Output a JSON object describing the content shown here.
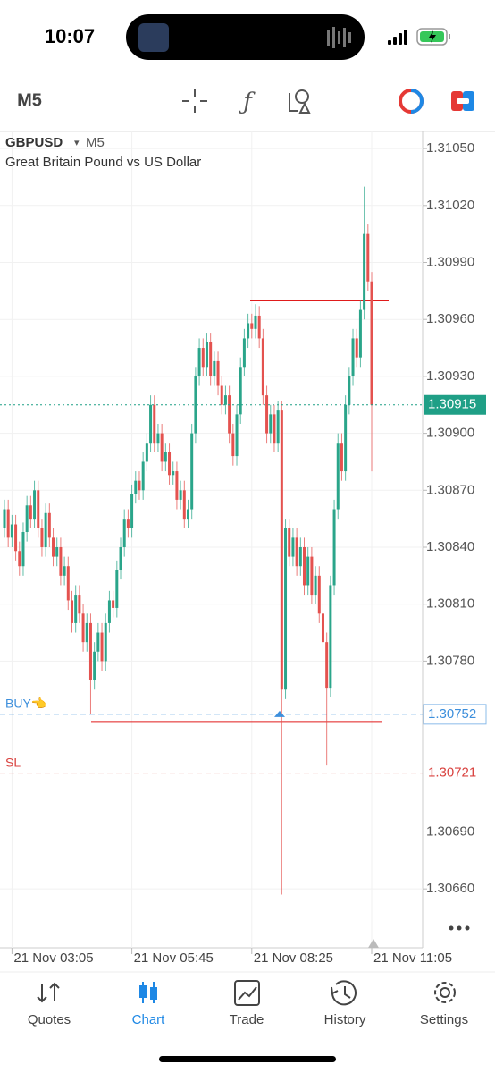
{
  "status_bar": {
    "time": "10:07"
  },
  "toolbar": {
    "timeframe": "M5"
  },
  "chart_data": {
    "type": "candlestick",
    "symbol": "GBPUSD",
    "timeframe": "M5",
    "description": "Great Britain Pound vs US Dollar",
    "up_color": "#2aa58a",
    "down_color": "#e4524f",
    "categories": [
      null,
      null,
      "21 Nov 03:05",
      null,
      null,
      null,
      null,
      null,
      null,
      null,
      null,
      null,
      null,
      null,
      null,
      null,
      null,
      null,
      null,
      null,
      null,
      null,
      null,
      null,
      null,
      null,
      null,
      null,
      null,
      null,
      null,
      null,
      null,
      null,
      "21 Nov 05:45",
      null,
      null,
      null,
      null,
      null,
      null,
      null,
      null,
      null,
      null,
      null,
      null,
      null,
      null,
      null,
      null,
      null,
      null,
      null,
      null,
      null,
      null,
      null,
      null,
      null,
      null,
      null,
      null,
      null,
      null,
      null,
      "21 Nov 08:25",
      null,
      null,
      null,
      null,
      null,
      null,
      null,
      null,
      null,
      null,
      null,
      null,
      null,
      null,
      null,
      null,
      null,
      null,
      null,
      null,
      null,
      null,
      null,
      null,
      null,
      null,
      null,
      null,
      null,
      null,
      null,
      "21 Nov 11:05"
    ],
    "open": [
      1.3085,
      1.3086,
      1.30845,
      1.30852,
      1.30838,
      1.3083,
      1.30848,
      1.30862,
      1.30855,
      1.3087,
      1.3085,
      1.3084,
      1.30858,
      1.30845,
      1.30835,
      1.3084,
      1.30825,
      1.3083,
      1.30812,
      1.308,
      1.30815,
      1.30805,
      1.3079,
      1.308,
      1.3077,
      1.30785,
      1.30795,
      1.3078,
      1.308,
      1.30812,
      1.30808,
      1.30828,
      1.3084,
      1.30855,
      1.3085,
      1.30868,
      1.30875,
      1.3087,
      1.30885,
      1.30895,
      1.30915,
      1.30895,
      1.309,
      1.30885,
      1.3089,
      1.30878,
      1.3088,
      1.30865,
      1.3087,
      1.30855,
      1.3086,
      1.309,
      1.3093,
      1.30945,
      1.30935,
      1.30948,
      1.3093,
      1.30938,
      1.30925,
      1.30915,
      1.3092,
      1.309,
      1.30888,
      1.3091,
      1.30935,
      1.3095,
      1.30958,
      1.30955,
      1.30962,
      1.3095,
      1.3092,
      1.309,
      1.3091,
      1.30895,
      1.30912,
      1.30765,
      1.3085,
      1.30835,
      1.30845,
      1.3083,
      1.3084,
      1.3082,
      1.30835,
      1.30815,
      1.30825,
      1.30805,
      1.3079,
      1.30766,
      1.3082,
      1.3086,
      1.30895,
      1.3088,
      1.30915,
      1.3093,
      1.3095,
      1.3094,
      1.30965,
      1.31005,
      1.3098
    ],
    "high": [
      1.30865,
      1.30865,
      1.30857,
      1.30857,
      1.30843,
      1.30853,
      1.30867,
      1.30867,
      1.30875,
      1.30875,
      1.30855,
      1.30863,
      1.30863,
      1.3085,
      1.30845,
      1.30845,
      1.30835,
      1.30835,
      1.30817,
      1.3082,
      1.3082,
      1.3081,
      1.30805,
      1.30805,
      1.3079,
      1.308,
      1.308,
      1.30805,
      1.30817,
      1.30817,
      1.30833,
      1.30845,
      1.3086,
      1.3086,
      1.30873,
      1.3088,
      1.3088,
      1.3089,
      1.309,
      1.3092,
      1.3092,
      1.30905,
      1.30905,
      1.30895,
      1.30895,
      1.30885,
      1.30885,
      1.30875,
      1.30875,
      1.30865,
      1.30905,
      1.30935,
      1.3095,
      1.3095,
      1.30953,
      1.30953,
      1.30943,
      1.30943,
      1.3093,
      1.30925,
      1.30925,
      1.30905,
      1.30915,
      1.3094,
      1.30955,
      1.30963,
      1.30963,
      1.30968,
      1.30967,
      1.30955,
      1.30925,
      1.30915,
      1.30915,
      1.30917,
      1.30917,
      1.30855,
      1.30855,
      1.3085,
      1.3085,
      1.30845,
      1.30845,
      1.3084,
      1.3084,
      1.3083,
      1.3083,
      1.3081,
      1.30795,
      1.30825,
      1.30865,
      1.309,
      1.309,
      1.3092,
      1.30935,
      1.30955,
      1.30955,
      1.3097,
      1.3103,
      1.3101,
      1.30985
    ],
    "low": [
      1.30845,
      1.3084,
      1.3084,
      1.30833,
      1.30825,
      1.30825,
      1.30843,
      1.3085,
      1.3085,
      1.30845,
      1.30835,
      1.30835,
      1.3084,
      1.3083,
      1.3083,
      1.3082,
      1.3082,
      1.30807,
      1.30795,
      1.30795,
      1.308,
      1.30785,
      1.30785,
      1.30752,
      1.30765,
      1.3078,
      1.30775,
      1.30775,
      1.30795,
      1.30803,
      1.30803,
      1.30823,
      1.30835,
      1.30845,
      1.30845,
      1.30863,
      1.30865,
      1.30865,
      1.3088,
      1.3089,
      1.3089,
      1.3089,
      1.3088,
      1.3088,
      1.30873,
      1.30873,
      1.3086,
      1.3086,
      1.3085,
      1.3085,
      1.30855,
      1.30895,
      1.30925,
      1.3093,
      1.3093,
      1.30925,
      1.30925,
      1.3092,
      1.3091,
      1.3091,
      1.30895,
      1.30883,
      1.30883,
      1.30905,
      1.3093,
      1.30945,
      1.3095,
      1.3095,
      1.30945,
      1.30915,
      1.30895,
      1.30895,
      1.3089,
      1.3089,
      1.30657,
      1.3076,
      1.3083,
      1.3083,
      1.30825,
      1.30825,
      1.30815,
      1.30815,
      1.3081,
      1.3081,
      1.308,
      1.30785,
      1.30725,
      1.30761,
      1.30815,
      1.30855,
      1.30875,
      1.30875,
      1.3091,
      1.30925,
      1.30935,
      1.30935,
      1.3096,
      1.30975,
      1.3088
    ],
    "close": [
      1.3086,
      1.30845,
      1.30852,
      1.30838,
      1.3083,
      1.30848,
      1.30862,
      1.30855,
      1.3087,
      1.3085,
      1.3084,
      1.30858,
      1.30845,
      1.30835,
      1.3084,
      1.30825,
      1.3083,
      1.30812,
      1.308,
      1.30815,
      1.30805,
      1.3079,
      1.308,
      1.3077,
      1.30785,
      1.30795,
      1.3078,
      1.308,
      1.30812,
      1.30808,
      1.30828,
      1.3084,
      1.30855,
      1.3085,
      1.30868,
      1.30875,
      1.3087,
      1.30885,
      1.30895,
      1.30915,
      1.30895,
      1.309,
      1.30885,
      1.3089,
      1.30878,
      1.3088,
      1.30865,
      1.3087,
      1.30855,
      1.3086,
      1.309,
      1.3093,
      1.30945,
      1.30935,
      1.30948,
      1.3093,
      1.30938,
      1.30925,
      1.30915,
      1.3092,
      1.309,
      1.30888,
      1.3091,
      1.30935,
      1.3095,
      1.30958,
      1.30955,
      1.30962,
      1.3095,
      1.3092,
      1.309,
      1.3091,
      1.30895,
      1.30912,
      1.30765,
      1.3085,
      1.30835,
      1.30845,
      1.3083,
      1.3084,
      1.3082,
      1.30835,
      1.30815,
      1.30825,
      1.30805,
      1.3079,
      1.30766,
      1.3082,
      1.3086,
      1.30895,
      1.3088,
      1.30915,
      1.3093,
      1.3095,
      1.3094,
      1.30965,
      1.31005,
      1.3098,
      1.30915
    ],
    "ylim": [
      1.30629,
      1.31059
    ],
    "yticks": [
      {
        "value": 1.3105,
        "label": "1.31050"
      },
      {
        "value": 1.3102,
        "label": "1.31020"
      },
      {
        "value": 1.3099,
        "label": "1.30990"
      },
      {
        "value": 1.3096,
        "label": "1.30960"
      },
      {
        "value": 1.3093,
        "label": "1.30930"
      },
      {
        "value": 1.309,
        "label": "1.30900"
      },
      {
        "value": 1.3087,
        "label": "1.30870"
      },
      {
        "value": 1.3084,
        "label": "1.30840"
      },
      {
        "value": 1.3081,
        "label": "1.30810"
      },
      {
        "value": 1.3078,
        "label": "1.30780"
      },
      {
        "value": 1.3069,
        "label": "1.30690"
      },
      {
        "value": 1.3066,
        "label": "1.30660"
      }
    ],
    "current_price": 1.30915,
    "current_color": "#1f9f86",
    "orders": [
      {
        "name": "BUY👈",
        "value": 1.30752,
        "color": "#3d8fdc"
      },
      {
        "name": "SL",
        "value": 1.30721,
        "color": "#d9423f"
      }
    ],
    "drawn_lines": [
      1.3097,
      1.30748
    ],
    "drawn_color": "#e01b1b"
  },
  "tab_bar": {
    "tabs": [
      "Quotes",
      "Chart",
      "Trade",
      "History",
      "Settings"
    ],
    "active": 1
  }
}
